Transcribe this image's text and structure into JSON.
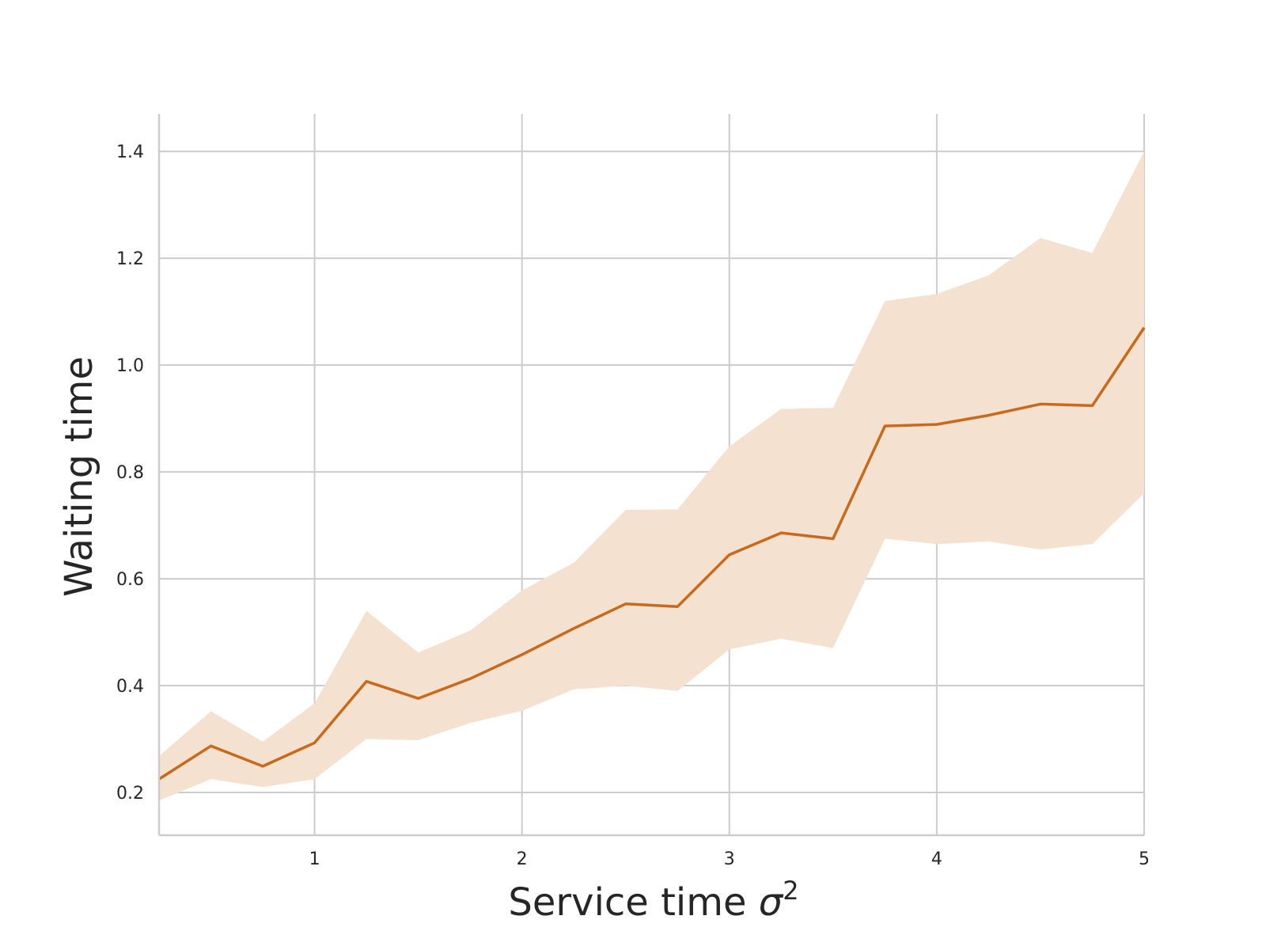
{
  "chart_data": {
    "type": "line",
    "xlabel": "Service time",
    "xlabel_symbol": "σ",
    "xlabel_superscript": "2",
    "ylabel": "Waiting time",
    "xlim": [
      0.25,
      5.0
    ],
    "ylim": [
      0.12,
      1.47
    ],
    "grid": true,
    "xticks": [
      1,
      2,
      3,
      4,
      5
    ],
    "xtick_labels": [
      "1",
      "2",
      "3",
      "4",
      "5"
    ],
    "yticks": [
      0.2,
      0.4,
      0.6,
      0.8,
      1.0,
      1.2,
      1.4
    ],
    "ytick_labels": [
      "0.2",
      "0.4",
      "0.6",
      "0.8",
      "1.0",
      "1.2",
      "1.4"
    ],
    "series": [
      {
        "line_color": "#c8691c",
        "band_color": "#f4e1cf",
        "x": [
          0.25,
          0.5,
          0.75,
          1.0,
          1.25,
          1.5,
          1.75,
          2.0,
          2.25,
          2.5,
          2.75,
          3.0,
          3.25,
          3.5,
          3.75,
          4.0,
          4.25,
          4.5,
          4.75,
          5.0
        ],
        "y": [
          0.225,
          0.287,
          0.249,
          0.293,
          0.408,
          0.376,
          0.413,
          0.458,
          0.507,
          0.553,
          0.548,
          0.645,
          0.686,
          0.675,
          0.886,
          0.889,
          0.906,
          0.927,
          0.924,
          1.07
        ],
        "lower": [
          0.185,
          0.225,
          0.21,
          0.225,
          0.3,
          0.298,
          0.33,
          0.353,
          0.393,
          0.4,
          0.39,
          0.468,
          0.488,
          0.47,
          0.675,
          0.665,
          0.67,
          0.655,
          0.665,
          0.76
        ],
        "upper": [
          0.268,
          0.352,
          0.295,
          0.367,
          0.54,
          0.462,
          0.503,
          0.578,
          0.63,
          0.729,
          0.73,
          0.848,
          0.918,
          0.92,
          1.12,
          1.133,
          1.168,
          1.238,
          1.21,
          1.4
        ]
      }
    ]
  }
}
